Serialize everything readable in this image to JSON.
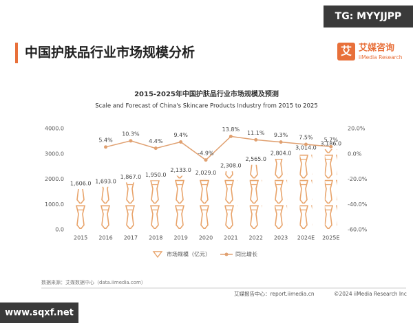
{
  "page": {
    "title": "中国护肤品行业市场规模分析",
    "logo": "艾媒咨询",
    "logo_en": "iiMedia Research",
    "logo_mark": "艾",
    "watermark_top": "TG: MYYJJPP",
    "watermark_bottom": "www.sqxf.net",
    "source": "数据来源：艾媒数据中心（data.iimedia.com）",
    "footer_center": "艾媒报告中心：report.iimedia.cn",
    "footer_right": "©2024  iiMedia Research  Inc"
  },
  "chart_data": {
    "type": "bar_line",
    "title": "2015-2025年中国护肤品行业市场规模及预测",
    "subtitle": "Scale and Forecast of China's Skincare Products Industry from 2015 to 2025",
    "categories": [
      "2015",
      "2016",
      "2017",
      "2018",
      "2019",
      "2020",
      "2021",
      "2022",
      "2023",
      "2024E",
      "2025E"
    ],
    "series": [
      {
        "name": "市场规模（亿元）",
        "color": "#e8a36a",
        "values": [
          1606.0,
          1693.0,
          1867.0,
          1950.0,
          2133.0,
          2029.0,
          2308.0,
          2565.0,
          2804.0,
          3014.0,
          3186.0
        ],
        "value_labels": [
          "1,606.0",
          "1,693.0",
          "1,867.0",
          "1,950.0",
          "2,133.0",
          "2,029.0",
          "2,308.0",
          "2,565.0",
          "2,804.0",
          "3,014.0",
          "3,186.0"
        ]
      },
      {
        "name": "同比增长",
        "color": "#e0a070",
        "axis": "y2",
        "values": [
          null,
          5.4,
          10.3,
          4.4,
          9.4,
          -4.9,
          13.8,
          11.1,
          9.3,
          7.5,
          5.7
        ],
        "value_labels": [
          null,
          "5.4%",
          "10.3%",
          "4.4%",
          "9.4%",
          "-4.9%",
          "13.8%",
          "11.1%",
          "9.3%",
          "7.5%",
          "5.7%"
        ]
      }
    ],
    "ylim": [
      0,
      4000
    ],
    "yticks": [
      {
        "value": 0,
        "label": "0.0"
      },
      {
        "value": 1000,
        "label": "1000.0"
      },
      {
        "value": 2000,
        "label": "2000.0"
      },
      {
        "value": 3000,
        "label": "3000.0"
      },
      {
        "value": 4000,
        "label": "4000.0"
      }
    ],
    "y2lim": [
      -60,
      20
    ],
    "y2ticks": [
      {
        "value": -60,
        "label": "-60.0%"
      },
      {
        "value": -40,
        "label": "-40.0%"
      },
      {
        "value": -20,
        "label": "-20.0%"
      },
      {
        "value": 0,
        "label": "0.0%"
      },
      {
        "value": 20,
        "label": "20.0%"
      }
    ],
    "legend": "bottom"
  }
}
